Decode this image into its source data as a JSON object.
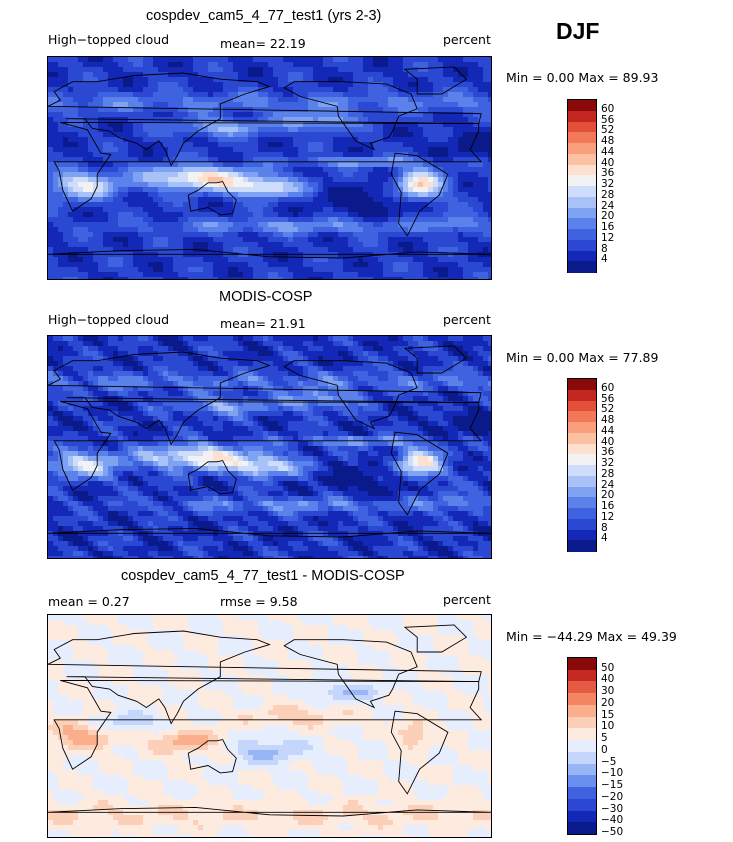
{
  "season": "DJF",
  "palette_tc": [
    "#0a1a8a",
    "#1428b8",
    "#2a48d2",
    "#3f62e0",
    "#5a82ea",
    "#7fa2f2",
    "#a8c2f7",
    "#cdddfb",
    "#f2f2f2",
    "#fde0d0",
    "#fcc0a2",
    "#fa9f7c",
    "#f27958",
    "#e2503a",
    "#c42620",
    "#8a0a0a"
  ],
  "palette_diff": [
    "#0a1a8a",
    "#1428b8",
    "#2a48d2",
    "#3f62e0",
    "#6b8ff0",
    "#98b6f6",
    "#c4d6fb",
    "#e6eefe",
    "#feebe0",
    "#fcd0b8",
    "#faae8c",
    "#f48664",
    "#e45a42",
    "#c42a22",
    "#8a0a0a"
  ],
  "panels": [
    {
      "title": "cospdev_cam5_4_77_test1 (yrs 2-3)",
      "left_label": "High−topped cloud",
      "mid_label": "mean=   22.19",
      "right_label": "percent",
      "minmax": "Min =    0.00  Max =   89.93",
      "levels": [
        "60",
        "56",
        "52",
        "48",
        "44",
        "40",
        "36",
        "32",
        "28",
        "24",
        "20",
        "16",
        "12",
        "8",
        "4"
      ],
      "scheme": "tc"
    },
    {
      "title": "MODIS-COSP",
      "left_label": "High−topped cloud",
      "mid_label": "mean=   21.91",
      "right_label": "percent",
      "minmax": "Min =    0.00  Max =   77.89",
      "levels": [
        "60",
        "56",
        "52",
        "48",
        "44",
        "40",
        "36",
        "32",
        "28",
        "24",
        "20",
        "16",
        "12",
        "8",
        "4"
      ],
      "scheme": "tc"
    },
    {
      "title": "cospdev_cam5_4_77_test1 - MODIS-COSP",
      "left_label": "mean =     0.27",
      "mid_label": "rmse =     9.58",
      "right_label": "percent",
      "minmax": "Min = −44.29  Max =   49.39",
      "levels": [
        "50",
        "40",
        "30",
        "20",
        "15",
        "10",
        "5",
        "0",
        "−5",
        "−10",
        "−15",
        "−20",
        "−30",
        "−40",
        "−50"
      ],
      "scheme": "diff"
    }
  ]
}
